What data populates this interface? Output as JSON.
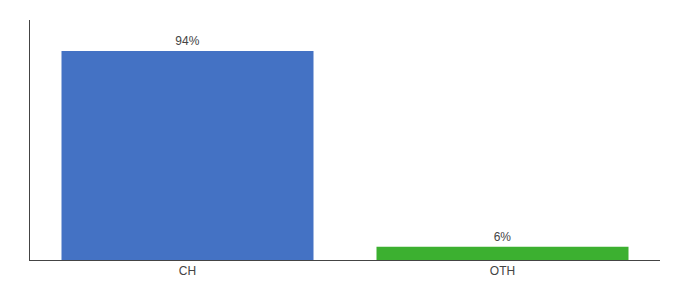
{
  "chart_data": {
    "type": "bar",
    "categories": [
      "CH",
      "OTH"
    ],
    "values": [
      94,
      6
    ],
    "value_labels": [
      "94%",
      "6%"
    ],
    "colors": [
      "#4472c4",
      "#3cb030"
    ],
    "ylim": [
      0,
      108
    ],
    "grid": false,
    "data_labels": true,
    "tick_labels": "x"
  }
}
